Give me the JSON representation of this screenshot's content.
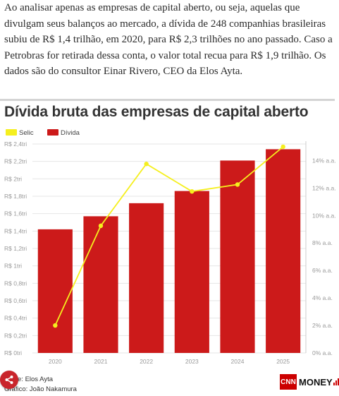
{
  "article": {
    "paragraph": "Ao analisar apenas as empresas de capital aberto, ou seja, aquelas que divulgam seus balanços ao mercado, a dívida de 248 companhias brasileiras subiu de R$ 1,4 trilhão, em 2020, para R$ 2,3 trilhões no ano passado. Caso a Petrobras for retirada dessa conta, o valor total recua para R$ 1,9 trilhão. Os dados são do consultor Einar Rivero, CEO da Elos Ayta."
  },
  "chart": {
    "source_line": "Fonte: Elos Ayta",
    "graphic_line": "Gráfico: João Nakamura",
    "logo_cnn": "CNN",
    "logo_money": "MONEY",
    "colors": {
      "bar": "#cc1a1a",
      "line": "#f5ef1e",
      "axis_text": "#999999",
      "grid": "#e6e6e6"
    }
  },
  "chart_data": {
    "type": "bar",
    "title": "Dívida bruta das empresas de capital aberto",
    "legend": [
      "Selic",
      "Dívida"
    ],
    "legend_placement": "top-left",
    "categories": [
      "2020",
      "2021",
      "2022",
      "2023",
      "2024",
      "2025"
    ],
    "series": [
      {
        "name": "Dívida",
        "type": "bar",
        "axis": "left",
        "values": [
          1.42,
          1.57,
          1.72,
          1.86,
          2.21,
          2.34
        ]
      },
      {
        "name": "Selic",
        "type": "line",
        "axis": "right",
        "values": [
          2.0,
          9.25,
          13.75,
          11.75,
          12.25,
          15.0
        ]
      }
    ],
    "y_left": {
      "ylim": [
        0,
        2.4
      ],
      "ticks": [
        "R$ 0tri",
        "R$ 0,2tri",
        "R$ 0,4tri",
        "R$ 0,6tri",
        "R$ 0,8tri",
        "R$ 1tri",
        "R$ 1,2tri",
        "R$ 1,4tri",
        "R$ 1,6tri",
        "R$ 1,8tri",
        "R$ 2tri",
        "R$ 2,2tri",
        "R$ 2,4tri"
      ]
    },
    "y_right": {
      "ylim": [
        0,
        15.2
      ],
      "ticks": [
        "0% a.a.",
        "2% a.a.",
        "4% a.a.",
        "6% a.a.",
        "8% a.a.",
        "10% a.a.",
        "12% a.a.",
        "14% a.a."
      ]
    },
    "grid": true
  }
}
